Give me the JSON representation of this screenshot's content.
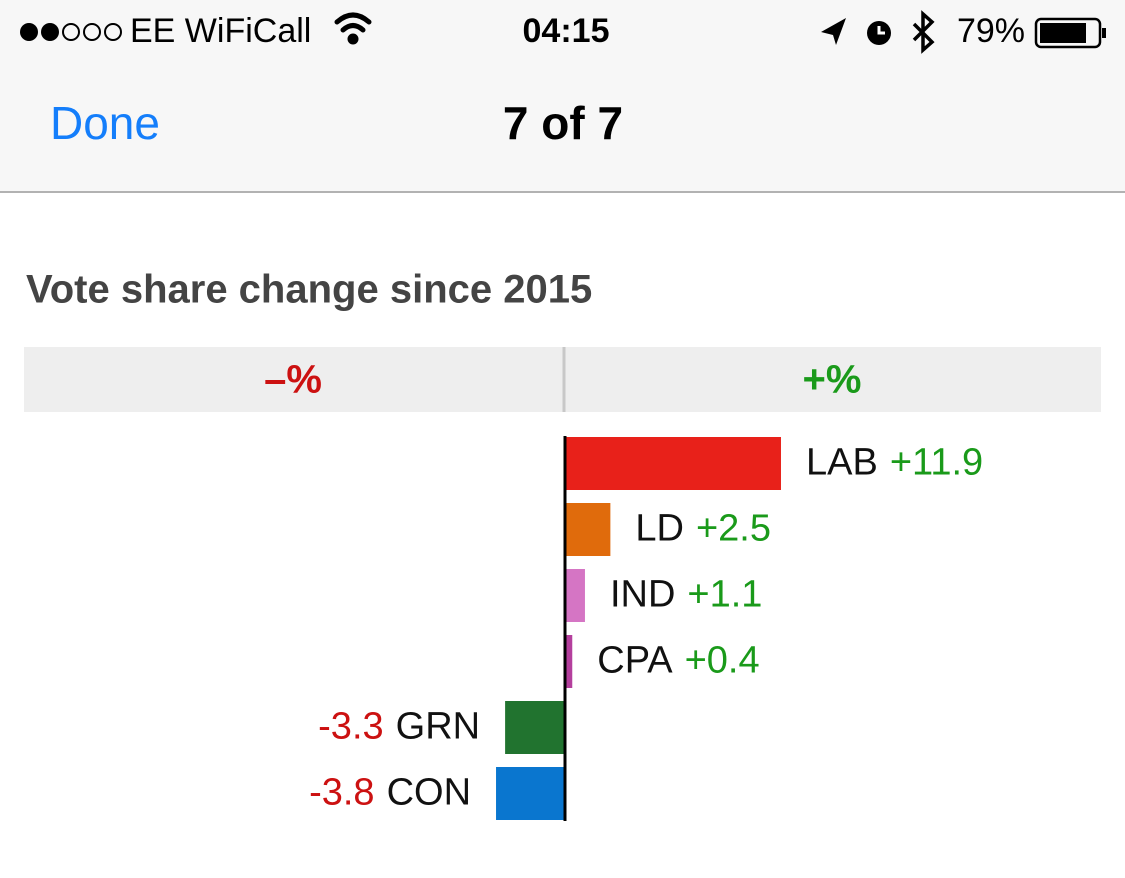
{
  "status_bar": {
    "carrier": "EE WiFiCall",
    "time": "04:15",
    "battery": "79%"
  },
  "nav": {
    "done": "Done",
    "title": "7 of 7"
  },
  "chart_data": {
    "type": "bar",
    "orientation": "horizontal",
    "title": "Vote share change since 2015",
    "negative_header": "–%",
    "positive_header": "+%",
    "categories": [
      "LAB",
      "LD",
      "IND",
      "CPA",
      "GRN",
      "CON"
    ],
    "values": [
      11.9,
      2.5,
      1.1,
      0.4,
      -3.3,
      -3.8
    ],
    "value_labels": [
      "+11.9",
      "+2.5",
      "+1.1",
      "+0.4",
      "-3.3",
      "-3.8"
    ],
    "colors": [
      "#e8211a",
      "#e06b0c",
      "#d575c4",
      "#b43f9d",
      "#21732f",
      "#0a76cf"
    ]
  }
}
